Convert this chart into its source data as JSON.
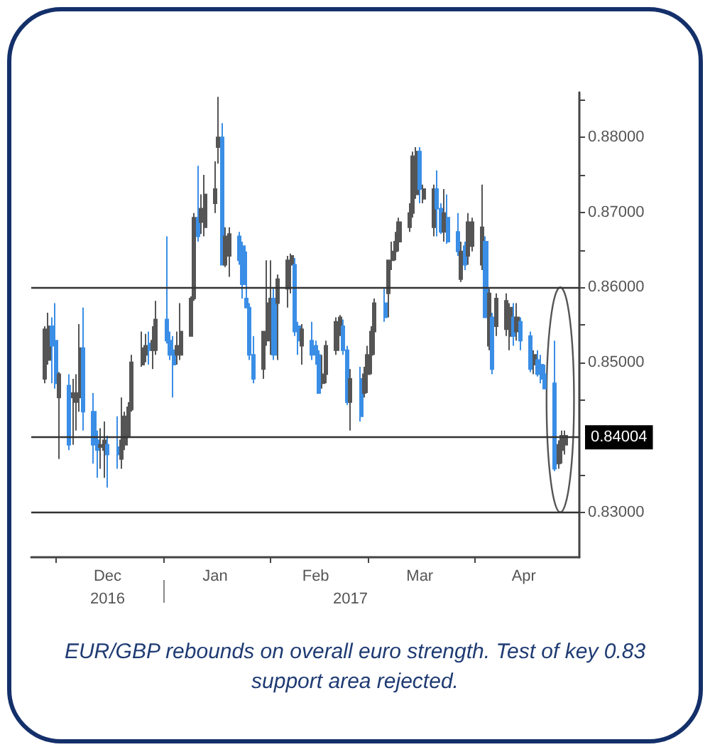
{
  "chart_data": {
    "type": "candlestick",
    "x": [
      "2016-11-28",
      "2016-11-29",
      "2016-11-30",
      "2016-12-01",
      "2016-12-02",
      "2016-12-05",
      "2016-12-06",
      "2016-12-07",
      "2016-12-08",
      "2016-12-09",
      "2016-12-12",
      "2016-12-13",
      "2016-12-14",
      "2016-12-15",
      "2016-12-16",
      "2016-12-19",
      "2016-12-20",
      "2016-12-21",
      "2016-12-22",
      "2016-12-23",
      "2016-12-26",
      "2016-12-27",
      "2016-12-28",
      "2016-12-29",
      "2016-12-30",
      "2017-01-02",
      "2017-01-03",
      "2017-01-04",
      "2017-01-05",
      "2017-01-06",
      "2017-01-09",
      "2017-01-10",
      "2017-01-11",
      "2017-01-12",
      "2017-01-13",
      "2017-01-16",
      "2017-01-17",
      "2017-01-18",
      "2017-01-19",
      "2017-01-20",
      "2017-01-23",
      "2017-01-24",
      "2017-01-25",
      "2017-01-26",
      "2017-01-27",
      "2017-01-30",
      "2017-01-31",
      "2017-02-01",
      "2017-02-02",
      "2017-02-03",
      "2017-02-06",
      "2017-02-07",
      "2017-02-08",
      "2017-02-09",
      "2017-02-10",
      "2017-02-13",
      "2017-02-14",
      "2017-02-15",
      "2017-02-16",
      "2017-02-17",
      "2017-02-20",
      "2017-02-21",
      "2017-02-22",
      "2017-02-23",
      "2017-02-24",
      "2017-02-27",
      "2017-02-28",
      "2017-03-01",
      "2017-03-02",
      "2017-03-03",
      "2017-03-06",
      "2017-03-07",
      "2017-03-08",
      "2017-03-09",
      "2017-03-10",
      "2017-03-13",
      "2017-03-14",
      "2017-03-15",
      "2017-03-16",
      "2017-03-17",
      "2017-03-20",
      "2017-03-21",
      "2017-03-22",
      "2017-03-23",
      "2017-03-24",
      "2017-03-27",
      "2017-03-28",
      "2017-03-29",
      "2017-03-30",
      "2017-03-31",
      "2017-04-03",
      "2017-04-04",
      "2017-04-05",
      "2017-04-06",
      "2017-04-07",
      "2017-04-10",
      "2017-04-11",
      "2017-04-12",
      "2017-04-13",
      "2017-04-14",
      "2017-04-17",
      "2017-04-18",
      "2017-04-19",
      "2017-04-20",
      "2017-04-21",
      "2017-04-24",
      "2017-04-25",
      "2017-04-26",
      "2017-04-27"
    ],
    "ohlc": [
      [
        0.8478,
        0.8548,
        0.8472,
        0.8544
      ],
      [
        0.8503,
        0.8566,
        0.8497,
        0.8548
      ],
      [
        0.8548,
        0.856,
        0.8472,
        0.8522
      ],
      [
        0.8529,
        0.8579,
        0.8465,
        0.8472
      ],
      [
        0.8453,
        0.8487,
        0.8371,
        0.8484
      ],
      [
        0.8469,
        0.8484,
        0.8383,
        0.839
      ],
      [
        0.8453,
        0.8478,
        0.839,
        0.8459
      ],
      [
        0.8447,
        0.8484,
        0.8409,
        0.8459
      ],
      [
        0.8453,
        0.8551,
        0.8434,
        0.8519
      ],
      [
        0.8519,
        0.8573,
        0.8409,
        0.8434
      ],
      [
        0.8434,
        0.8459,
        0.8365,
        0.839
      ],
      [
        0.8396,
        0.8409,
        0.8346,
        0.8383
      ],
      [
        0.8387,
        0.8412,
        0.8358,
        0.839
      ],
      [
        0.8383,
        0.8421,
        0.8346,
        0.8396
      ],
      [
        0.839,
        0.8402,
        0.8333,
        0.8377
      ],
      [
        0.8387,
        0.8428,
        0.8358,
        0.8377
      ],
      [
        0.8371,
        0.8453,
        0.8358,
        0.8396
      ],
      [
        0.839,
        0.8434,
        0.8383,
        0.8428
      ],
      [
        0.8402,
        0.8447,
        0.8399,
        0.844
      ],
      [
        0.8437,
        0.851,
        0.8434,
        0.85
      ],
      [
        0.8497,
        0.8541,
        0.8494,
        0.8519
      ],
      [
        0.851,
        0.8538,
        0.85,
        0.8522
      ],
      [
        0.8525,
        0.8541,
        0.8497,
        0.8516
      ],
      [
        0.8516,
        0.8548,
        0.8491,
        0.8529
      ],
      [
        0.8516,
        0.8582,
        0.851,
        0.8557
      ],
      [
        0.8557,
        0.8668,
        0.8525,
        0.8529
      ],
      [
        0.8529,
        0.8541,
        0.8503,
        0.851
      ],
      [
        0.8516,
        0.8535,
        0.8453,
        0.8497
      ],
      [
        0.851,
        0.8541,
        0.8497,
        0.8522
      ],
      [
        0.851,
        0.8579,
        0.8503,
        0.8541
      ],
      [
        0.8535,
        0.8588,
        0.8535,
        0.8585
      ],
      [
        0.8585,
        0.8699,
        0.8582,
        0.8693
      ],
      [
        0.8693,
        0.8762,
        0.8661,
        0.8668
      ],
      [
        0.8687,
        0.8724,
        0.8671,
        0.8705
      ],
      [
        0.868,
        0.875,
        0.8668,
        0.8724
      ],
      [
        0.8712,
        0.8768,
        0.8699,
        0.8731
      ],
      [
        0.8787,
        0.8854,
        0.8765,
        0.88
      ],
      [
        0.88,
        0.8819,
        0.863,
        0.863
      ],
      [
        0.863,
        0.868,
        0.8627,
        0.8668
      ],
      [
        0.8642,
        0.868,
        0.8614,
        0.8671
      ],
      [
        0.8668,
        0.8674,
        0.863,
        0.8636
      ],
      [
        0.8655,
        0.8661,
        0.8585,
        0.8604
      ],
      [
        0.8585,
        0.8648,
        0.8573,
        0.8573
      ],
      [
        0.8573,
        0.8579,
        0.8503,
        0.851
      ],
      [
        0.851,
        0.8535,
        0.8472,
        0.8478
      ],
      [
        0.8491,
        0.8541,
        0.8478,
        0.8541
      ],
      [
        0.8529,
        0.8636,
        0.8522,
        0.8579
      ],
      [
        0.856,
        0.8636,
        0.851,
        0.8585
      ],
      [
        0.8585,
        0.8598,
        0.8503,
        0.851
      ],
      [
        0.8579,
        0.8617,
        0.8503,
        0.8611
      ],
      [
        0.8598,
        0.8642,
        0.8573,
        0.8636
      ],
      [
        0.863,
        0.8645,
        0.8592,
        0.8642
      ],
      [
        0.863,
        0.8639,
        0.8535,
        0.8541
      ],
      [
        0.8548,
        0.8554,
        0.851,
        0.8529
      ],
      [
        0.8522,
        0.8551,
        0.8497,
        0.8544
      ],
      [
        0.8529,
        0.8554,
        0.8503,
        0.851
      ],
      [
        0.8522,
        0.8529,
        0.8497,
        0.851
      ],
      [
        0.851,
        0.8516,
        0.8459,
        0.8459
      ],
      [
        0.8472,
        0.851,
        0.8465,
        0.8484
      ],
      [
        0.8484,
        0.8529,
        0.8472,
        0.8522
      ],
      [
        0.8516,
        0.856,
        0.851,
        0.8554
      ],
      [
        0.8548,
        0.8563,
        0.8535,
        0.856
      ],
      [
        0.8548,
        0.8557,
        0.851,
        0.8516
      ],
      [
        0.8516,
        0.8522,
        0.8443,
        0.8447
      ],
      [
        0.8447,
        0.8491,
        0.8409,
        0.8478
      ],
      [
        0.8478,
        0.8494,
        0.8421,
        0.8428
      ],
      [
        0.8459,
        0.8494,
        0.8453,
        0.8484
      ],
      [
        0.8484,
        0.8522,
        0.8459,
        0.851
      ],
      [
        0.851,
        0.8548,
        0.8484,
        0.8541
      ],
      [
        0.8541,
        0.8585,
        0.851,
        0.8579
      ],
      [
        0.8579,
        0.8598,
        0.8554,
        0.856
      ],
      [
        0.8592,
        0.8636,
        0.856,
        0.8636
      ],
      [
        0.8636,
        0.8661,
        0.8623,
        0.8648
      ],
      [
        0.8648,
        0.8674,
        0.8636,
        0.8661
      ],
      [
        0.8661,
        0.8693,
        0.8648,
        0.8687
      ],
      [
        0.868,
        0.8712,
        0.8674,
        0.8699
      ],
      [
        0.8699,
        0.8781,
        0.8693,
        0.8775
      ],
      [
        0.8724,
        0.8787,
        0.8718,
        0.8781
      ],
      [
        0.8781,
        0.8787,
        0.8712,
        0.8731
      ],
      [
        0.8718,
        0.8737,
        0.8712,
        0.8731
      ],
      [
        0.868,
        0.8737,
        0.8668,
        0.8731
      ],
      [
        0.8731,
        0.8756,
        0.8668,
        0.8705
      ],
      [
        0.8705,
        0.8712,
        0.8671,
        0.8674
      ],
      [
        0.8674,
        0.8731,
        0.8661,
        0.8699
      ],
      [
        0.8693,
        0.8724,
        0.8658,
        0.8661
      ],
      [
        0.8674,
        0.8699,
        0.8642,
        0.8648
      ],
      [
        0.8611,
        0.8661,
        0.8607,
        0.8648
      ],
      [
        0.8655,
        0.8661,
        0.8623,
        0.863
      ],
      [
        0.8642,
        0.8699,
        0.863,
        0.8687
      ],
      [
        0.8655,
        0.8693,
        0.8648,
        0.8687
      ],
      [
        0.863,
        0.8737,
        0.8623,
        0.868
      ],
      [
        0.8661,
        0.8668,
        0.856,
        0.856
      ],
      [
        0.8522,
        0.8598,
        0.8516,
        0.8592
      ],
      [
        0.856,
        0.8566,
        0.8484,
        0.8491
      ],
      [
        0.8548,
        0.8592,
        0.8535,
        0.8585
      ],
      [
        0.8544,
        0.8592,
        0.8535,
        0.8582
      ],
      [
        0.8535,
        0.8579,
        0.8516,
        0.8573
      ],
      [
        0.856,
        0.8579,
        0.8522,
        0.8535
      ],
      [
        0.8541,
        0.8579,
        0.8529,
        0.856
      ],
      [
        0.8554,
        0.856,
        0.8516,
        0.8529
      ],
      [
        0.8535,
        0.8541,
        0.8487,
        0.8491
      ],
      [
        0.8497,
        0.8516,
        0.8484,
        0.851
      ],
      [
        0.8503,
        0.8516,
        0.8481,
        0.8484
      ],
      [
        0.8497,
        0.851,
        0.8472,
        0.8478
      ],
      [
        0.8484,
        0.8497,
        0.8465,
        0.8465
      ],
      [
        0.8472,
        0.8529,
        0.8355,
        0.8358
      ],
      [
        0.8365,
        0.8396,
        0.8358,
        0.839
      ],
      [
        0.8383,
        0.8409,
        0.8365,
        0.8402
      ],
      [
        0.839,
        0.8409,
        0.8377,
        0.8402
      ]
    ],
    "colors": [
      "#555555",
      "#555555",
      "#3a8ee6",
      "#3a8ee6",
      "#555555",
      "#3a8ee6",
      "#555555",
      "#555555",
      "#555555",
      "#3a8ee6",
      "#3a8ee6",
      "#3a8ee6",
      "#555555",
      "#555555",
      "#3a8ee6",
      "#3a8ee6",
      "#555555",
      "#555555",
      "#555555",
      "#555555",
      "#555555",
      "#555555",
      "#3a8ee6",
      "#555555",
      "#555555",
      "#3a8ee6",
      "#3a8ee6",
      "#3a8ee6",
      "#555555",
      "#555555",
      "#555555",
      "#555555",
      "#3a8ee6",
      "#555555",
      "#555555",
      "#555555",
      "#555555",
      "#3a8ee6",
      "#555555",
      "#555555",
      "#3a8ee6",
      "#3a8ee6",
      "#3a8ee6",
      "#3a8ee6",
      "#3a8ee6",
      "#555555",
      "#555555",
      "#555555",
      "#3a8ee6",
      "#555555",
      "#555555",
      "#555555",
      "#3a8ee6",
      "#3a8ee6",
      "#555555",
      "#3a8ee6",
      "#3a8ee6",
      "#3a8ee6",
      "#555555",
      "#555555",
      "#555555",
      "#555555",
      "#3a8ee6",
      "#3a8ee6",
      "#555555",
      "#3a8ee6",
      "#555555",
      "#555555",
      "#555555",
      "#555555",
      "#3a8ee6",
      "#555555",
      "#555555",
      "#555555",
      "#555555",
      "#555555",
      "#555555",
      "#555555",
      "#3a8ee6",
      "#555555",
      "#555555",
      "#3a8ee6",
      "#3a8ee6",
      "#555555",
      "#3a8ee6",
      "#3a8ee6",
      "#555555",
      "#3a8ee6",
      "#555555",
      "#555555",
      "#555555",
      "#3a8ee6",
      "#555555",
      "#3a8ee6",
      "#555555",
      "#555555",
      "#555555",
      "#3a8ee6",
      "#555555",
      "#3a8ee6",
      "#3a8ee6",
      "#555555",
      "#3a8ee6",
      "#3a8ee6",
      "#3a8ee6",
      "#3a8ee6",
      "#555555",
      "#555555",
      "#555555"
    ],
    "xlim": [
      "2016-11-24",
      "2017-05-01"
    ],
    "xticks": [
      {
        "value": "2016-12-01",
        "label": null
      },
      {
        "value": "2016-12-16",
        "label": "Dec"
      },
      {
        "value": "2017-01-01",
        "label": null
      },
      {
        "value": "2017-01-16",
        "label": "Jan"
      },
      {
        "value": "2017-02-01",
        "label": null
      },
      {
        "value": "2017-02-14",
        "label": "Feb"
      },
      {
        "value": "2017-03-01",
        "label": null
      },
      {
        "value": "2017-03-16",
        "label": "Mar"
      },
      {
        "value": "2017-04-01",
        "label": null
      },
      {
        "value": "2017-04-15",
        "label": "Apr"
      }
    ],
    "x2lim": [
      "2016-11-24",
      "2017-05-01"
    ],
    "x2ticks": [
      {
        "value": "2016-12-16",
        "label": "2016"
      },
      {
        "value": "2017-01-01",
        "label": null
      },
      {
        "value": "2017-02-24",
        "label": "2017"
      }
    ],
    "ylim": [
      0.824,
      0.886
    ],
    "yticks": [
      {
        "value": 0.83,
        "label": "0.83000"
      },
      {
        "value": 0.835,
        "label": null
      },
      {
        "value": 0.845,
        "label": null
      },
      {
        "value": 0.85,
        "label": "0.85000"
      },
      {
        "value": 0.855,
        "label": null
      },
      {
        "value": 0.86,
        "label": "0.86000"
      },
      {
        "value": 0.865,
        "label": null
      },
      {
        "value": 0.87,
        "label": "0.87000"
      },
      {
        "value": 0.875,
        "label": null
      },
      {
        "value": 0.88,
        "label": "0.88000"
      },
      {
        "value": 0.885,
        "label": null
      }
    ],
    "ref_lines": [
      {
        "axis": "y",
        "value": 0.86,
        "label": null
      },
      {
        "axis": "y",
        "value": 0.84004,
        "label": "0.84004"
      },
      {
        "axis": "y",
        "value": 0.83,
        "label": null
      }
    ],
    "annotations": [
      "EUR/GBP rebounds on overall euro strength. Test of key 0.83 support area rejected."
    ]
  }
}
